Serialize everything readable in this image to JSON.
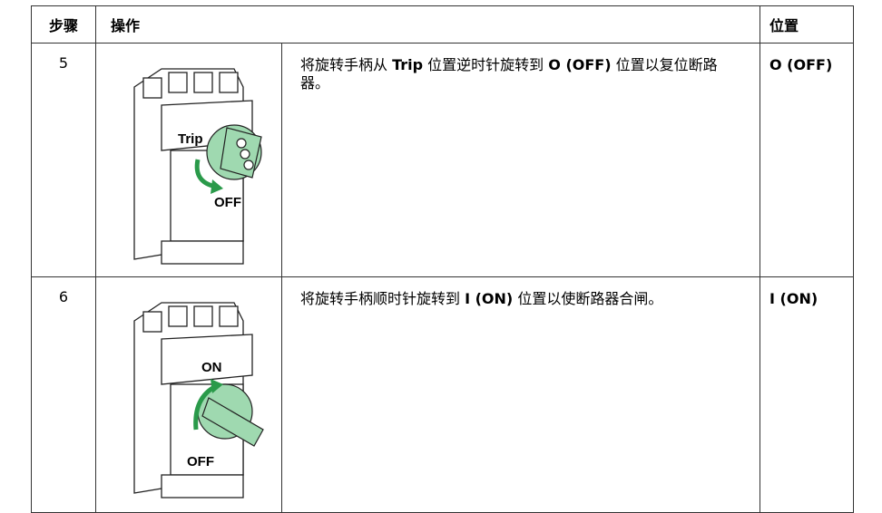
{
  "table": {
    "header": [
      "步骤",
      "操作",
      "位置"
    ],
    "rows": [
      {
        "step": "5",
        "description": [
          {
            "text": "将旋转手柄从 "
          },
          {
            "text": "Trip",
            "bold": true
          },
          {
            "text": " 位置逆时针旋转到 "
          },
          {
            "text": "O (OFF)",
            "bold": true
          },
          {
            "text": " 位置以复位断路器。"
          }
        ],
        "position": "O (OFF)",
        "figure_labels": [
          "Trip",
          "OFF"
        ]
      },
      {
        "step": "6",
        "description": [
          {
            "text": "将旋转手柄顺时针旋转到 "
          },
          {
            "text": "I (ON)",
            "bold": true
          },
          {
            "text": " 位置以使断路器合闸。"
          }
        ],
        "position": "I (ON)",
        "figure_labels": [
          "ON",
          "OFF"
        ]
      }
    ]
  }
}
